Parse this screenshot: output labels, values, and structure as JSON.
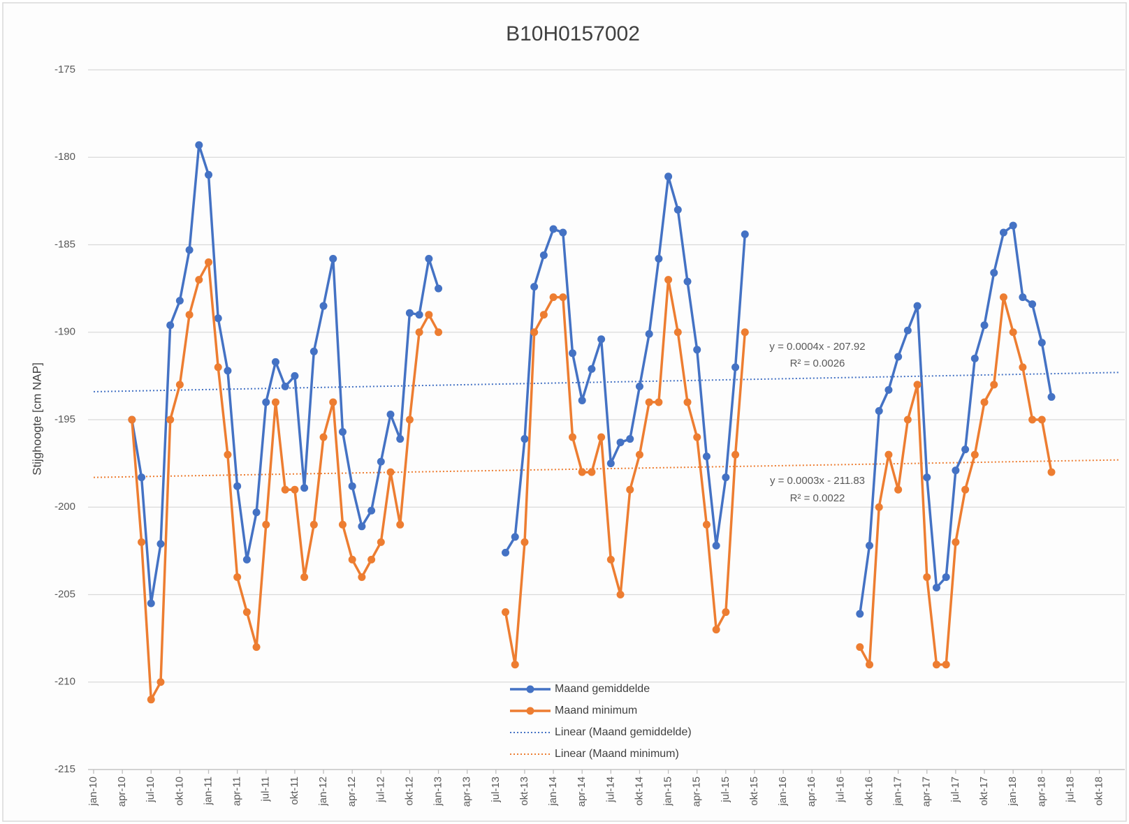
{
  "chart_data": {
    "type": "line",
    "title": "B10H0157002",
    "y_label": "Stijghoogte [cm NAP]",
    "categories": [
      "jan-10",
      null,
      null,
      "apr-10",
      null,
      null,
      "jul-10",
      null,
      null,
      "okt-10",
      null,
      null,
      "jan-11",
      null,
      null,
      "apr-11",
      null,
      null,
      "jul-11",
      null,
      null,
      "okt-11",
      null,
      null,
      "jan-12",
      null,
      null,
      "apr-12",
      null,
      null,
      "jul-12",
      null,
      null,
      "okt-12",
      null,
      null,
      "jan-13",
      null,
      null,
      "apr-13",
      null,
      null,
      "jul-13",
      null,
      null,
      "okt-13",
      null,
      null,
      "jan-14",
      null,
      null,
      "apr-14",
      null,
      null,
      "jul-14",
      null,
      null,
      "okt-14",
      null,
      null,
      "jan-15",
      null,
      null,
      "apr-15",
      null,
      null,
      "jul-15",
      null,
      null,
      "okt-15",
      null,
      null,
      "jan-16",
      null,
      null,
      "apr-16",
      null,
      null,
      "jul-16",
      null,
      null,
      "okt-16",
      null,
      null,
      "jan-17",
      null,
      null,
      "apr-17",
      null,
      null,
      "jul-17",
      null,
      null,
      "okt-17",
      null,
      null,
      "jan-18",
      null,
      null,
      "apr-18",
      null,
      null,
      "jul-18",
      null,
      null,
      "okt-18",
      null,
      null
    ],
    "series": [
      {
        "name": "Maand gemiddelde",
        "color": "#4472c4",
        "values": [
          null,
          null,
          null,
          null,
          -195,
          -198.3,
          -205.5,
          -202.1,
          -189.6,
          -188.2,
          -185.3,
          -179.3,
          -181,
          -189.2,
          -192.2,
          -198.8,
          -203,
          -200.3,
          -194,
          -191.7,
          -193.1,
          -192.5,
          -198.9,
          -191.1,
          -188.5,
          -185.8,
          -195.7,
          -198.8,
          -201.1,
          -200.2,
          -197.4,
          -194.7,
          -196.1,
          -188.9,
          -189,
          -185.8,
          -187.5,
          null,
          null,
          null,
          null,
          null,
          null,
          -202.6,
          -201.7,
          -196.1,
          -187.4,
          -185.6,
          -184.1,
          -184.3,
          -191.2,
          -193.9,
          -192.1,
          -190.4,
          -197.5,
          -196.3,
          -196.1,
          -193.1,
          -190.1,
          -185.8,
          -181.1,
          -183,
          -187.1,
          -191,
          -197.1,
          -202.2,
          -198.3,
          -192,
          -184.4,
          null,
          null,
          null,
          null,
          null,
          null,
          null,
          null,
          null,
          null,
          null,
          -206.1,
          -202.2,
          -194.5,
          -193.3,
          -191.4,
          -189.9,
          -188.5,
          -198.3,
          -204.6,
          -204,
          -197.9,
          -196.7,
          -191.5,
          -189.6,
          -186.6,
          -184.3,
          -183.9,
          -188,
          -188.4,
          -190.6,
          -193.7,
          null,
          null,
          null,
          null,
          null,
          null,
          null
        ]
      },
      {
        "name": "Maand minimum",
        "color": "#ed7d31",
        "values": [
          null,
          null,
          null,
          null,
          -195,
          -202,
          -211,
          -210,
          -195,
          -193,
          -189,
          -187,
          -186,
          -192,
          -197,
          -204,
          -206,
          -208,
          -201,
          -194,
          -199,
          -199,
          -204,
          -201,
          -196,
          -194,
          -201,
          -203,
          -204,
          -203,
          -202,
          -198,
          -201,
          -195,
          -190,
          -189,
          -190,
          null,
          null,
          null,
          null,
          null,
          null,
          -206,
          -209,
          -202,
          -190,
          -189,
          -188,
          -188,
          -196,
          -198,
          -198,
          -196,
          -203,
          -205,
          -199,
          -197,
          -194,
          -194,
          -187,
          -190,
          -194,
          -196,
          -201,
          -207,
          -206,
          -197,
          -190,
          null,
          null,
          null,
          null,
          null,
          null,
          null,
          null,
          null,
          null,
          null,
          -208,
          -209,
          -200,
          -197,
          -199,
          -195,
          -193,
          -204,
          -209,
          -209,
          -202,
          -199,
          -197,
          -194,
          -193,
          -188,
          -190,
          -192,
          -195,
          -195,
          -198,
          null,
          null,
          null,
          null,
          null,
          null,
          null
        ]
      }
    ],
    "trendlines": [
      {
        "name": "Linear (Maand gemiddelde)",
        "color": "#4472c4",
        "values": [
          -193.4,
          -192.3
        ],
        "equation": "y = 0.0004x - 207.92",
        "r2": "R² = 0.0026"
      },
      {
        "name": "Linear (Maand minimum)",
        "color": "#ed7d31",
        "values": [
          -198.3,
          -197.3
        ],
        "equation": "y = 0.0003x - 211.83",
        "r2": "R² = 0.0022"
      }
    ],
    "ylim": [
      -215,
      -175
    ],
    "yticks": [
      -215,
      -210,
      -205,
      -200,
      -195,
      -190,
      -185,
      -180,
      -175
    ],
    "grid": true
  }
}
